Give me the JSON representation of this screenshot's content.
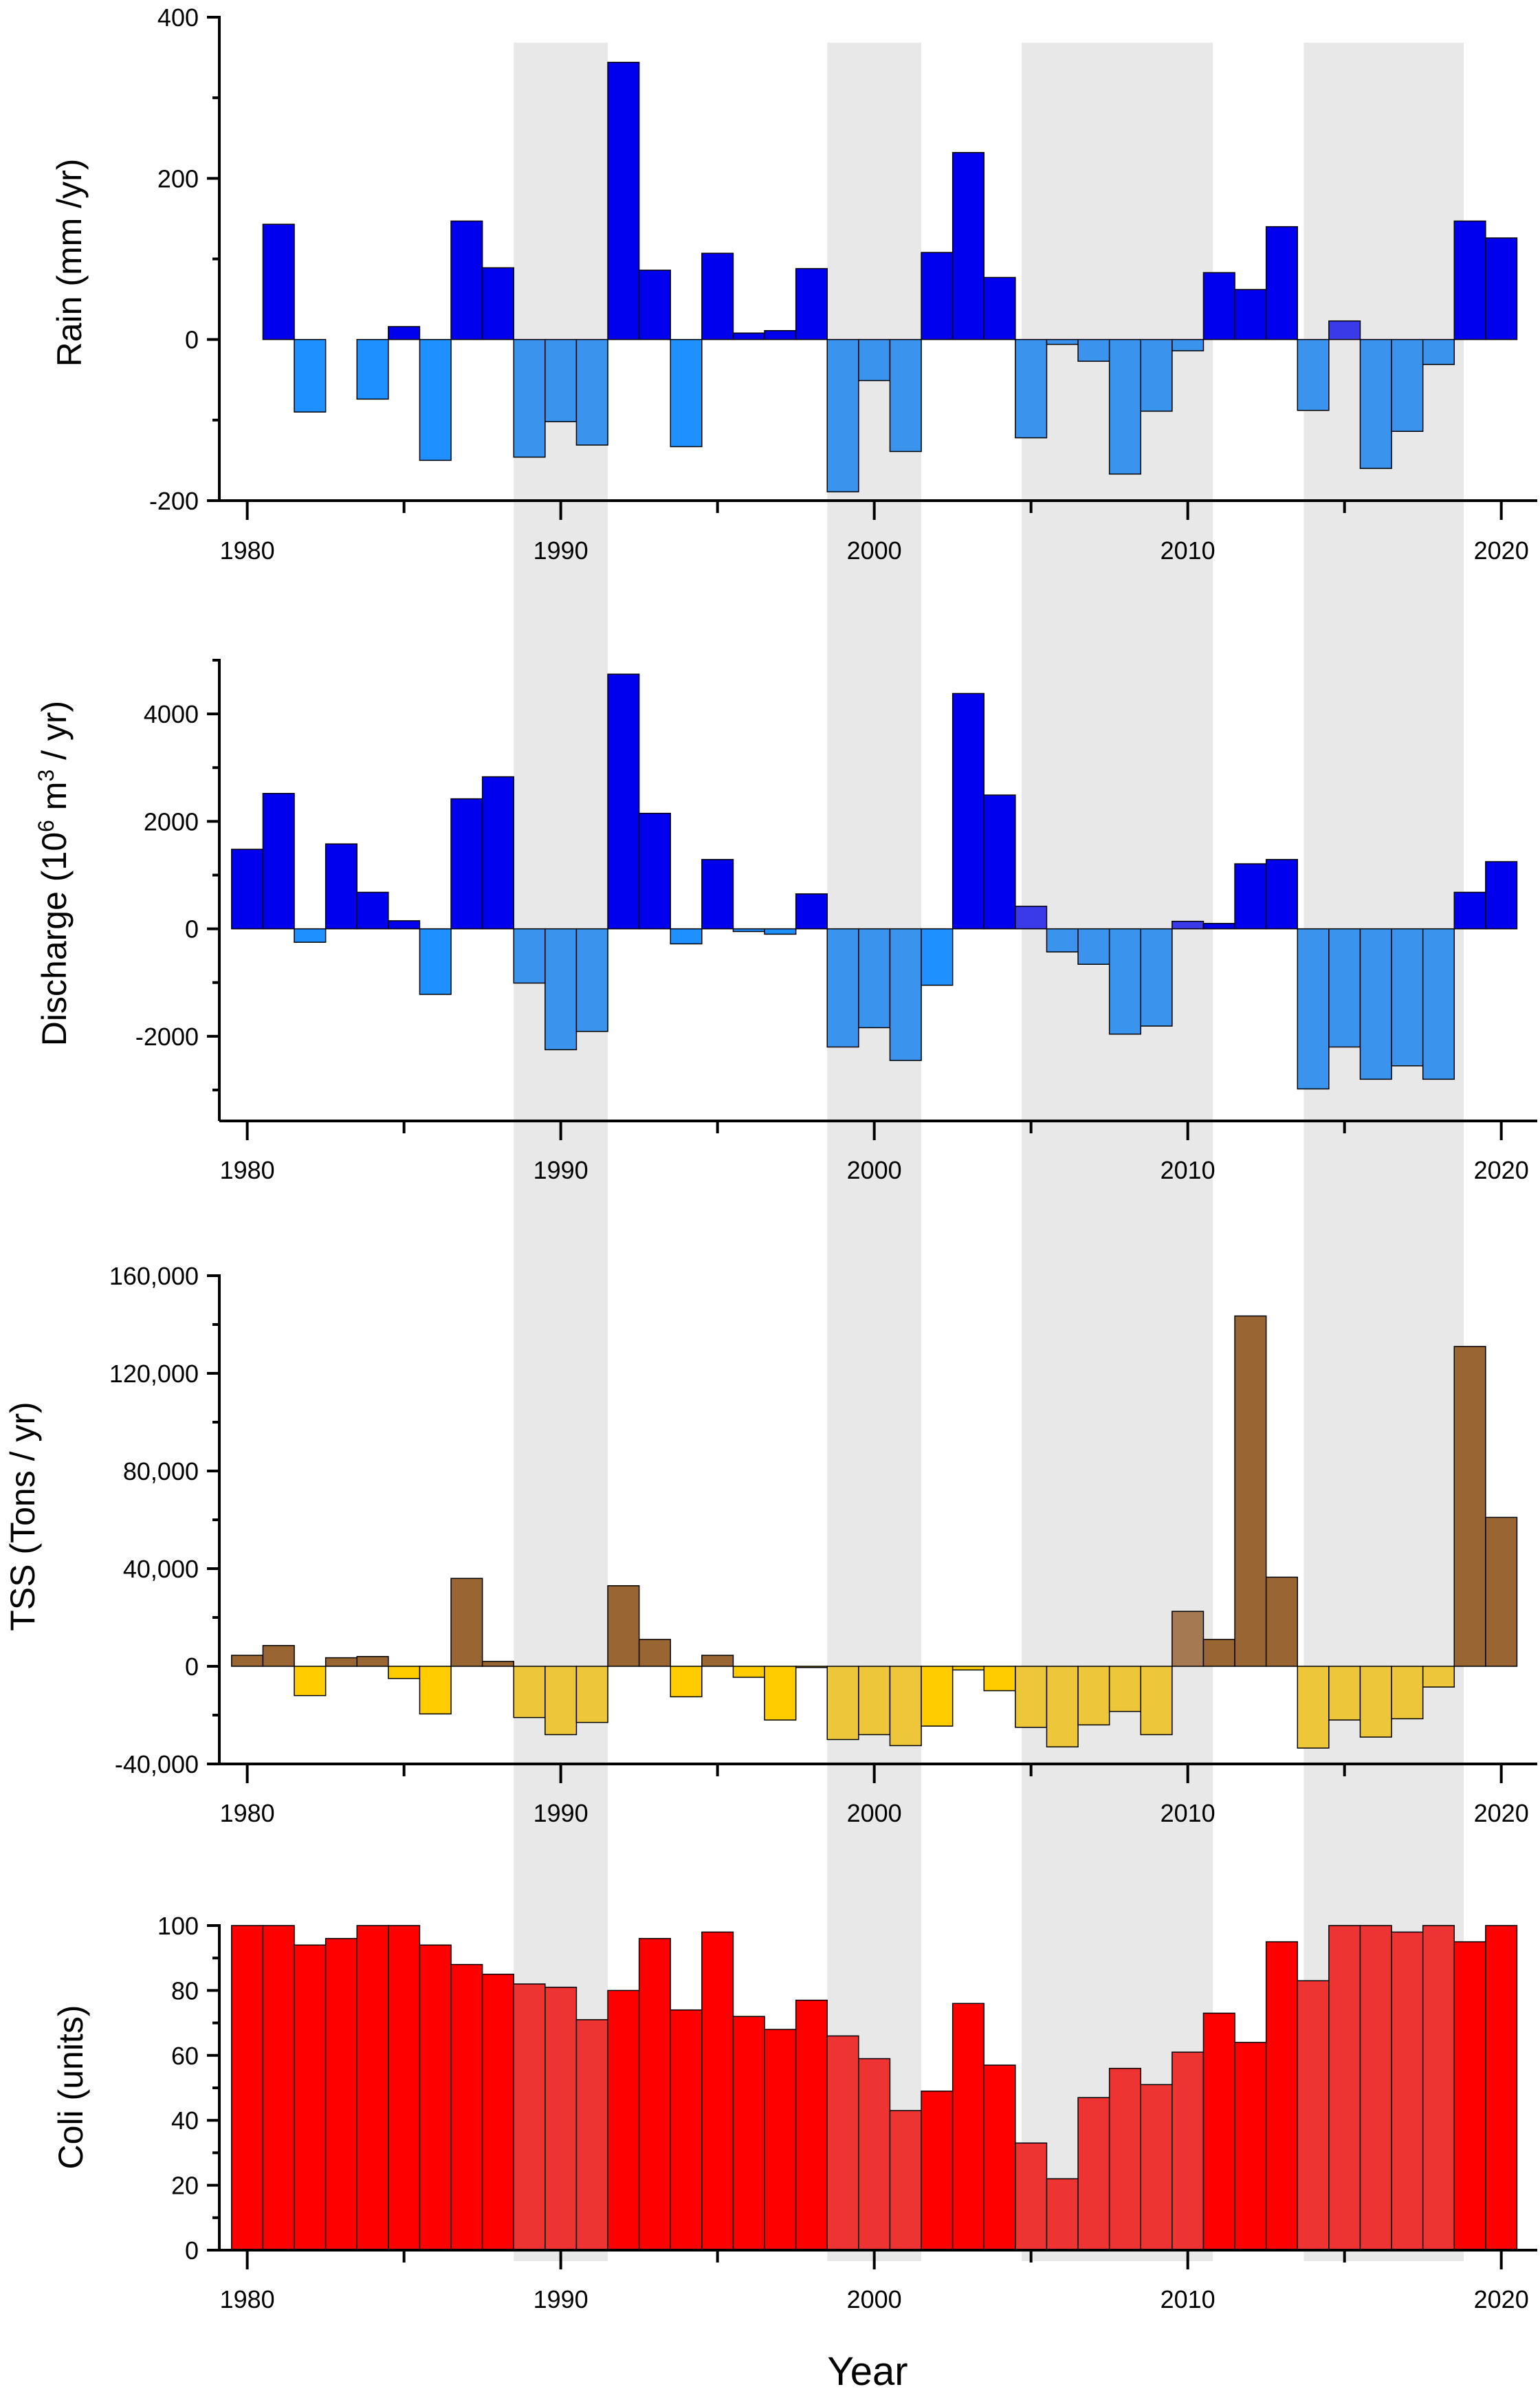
{
  "colors": {
    "shade": "#e8e8e8",
    "rain_pos": "#0000ee",
    "rain_neg": "#1e90ff",
    "rain_pos_shaded": "#3a3ae8",
    "rain_neg_shaded": "#3a94ee",
    "discharge_pos": "#0000ee",
    "discharge_neg": "#1e90ff",
    "discharge_pos_shaded": "#3a3ae8",
    "discharge_neg_shaded": "#3a94ee",
    "tss_pos": "#996633",
    "tss_neg": "#ffcc00",
    "tss_pos_shaded": "#a57a52",
    "tss_neg_shaded": "#eec63a",
    "coli": "#ff0000",
    "coli_shaded": "#ee3333"
  },
  "xlabel": "Year",
  "chart_data": [
    {
      "type": "bar",
      "ylabel": "Rain (mm /yr)",
      "ylim": [
        -200,
        400
      ],
      "yticks": [
        -200,
        0,
        200,
        400
      ],
      "yticklabels": [
        "-200",
        "0",
        "200",
        "400"
      ],
      "xticks": [
        1980,
        1990,
        2000,
        2010,
        2020
      ],
      "xticklabels": [
        "1980",
        "1990",
        "2000",
        "2010",
        "2020"
      ],
      "shaded_periods": [
        [
          1988.5,
          1991.5
        ],
        [
          1998.5,
          2001.5
        ],
        [
          2004.7,
          2010.8
        ],
        [
          2013.7,
          2018.8
        ]
      ],
      "x": [
        1980,
        1981,
        1982,
        1983,
        1984,
        1985,
        1986,
        1987,
        1988,
        1989,
        1990,
        1991,
        1992,
        1993,
        1994,
        1995,
        1996,
        1997,
        1998,
        1999,
        2000,
        2001,
        2002,
        2003,
        2004,
        2005,
        2006,
        2007,
        2008,
        2009,
        2010,
        2011,
        2012,
        2013,
        2014,
        2015,
        2016,
        2017,
        2018,
        2019,
        2020
      ],
      "values": [
        0,
        143,
        -90,
        0,
        -74,
        16,
        -150,
        147,
        89,
        -146,
        -102,
        -131,
        344,
        86,
        -133,
        107,
        8,
        11,
        88,
        -189,
        -51,
        -139,
        108,
        232,
        77,
        -122,
        -6,
        -27,
        -167,
        -89,
        -14,
        83,
        62,
        140,
        -88,
        23,
        -160,
        -114,
        -31,
        147,
        126
      ]
    },
    {
      "type": "bar",
      "ylabel": "Discharge (10",
      "ylabel_sup": "6",
      "ylabel_mid": " m",
      "ylabel_sup2": "3",
      "ylabel_end": " / yr)",
      "ylim": [
        -3000,
        5000
      ],
      "yticks": [
        -2000,
        0,
        2000,
        4000
      ],
      "yticklabels": [
        "-2000",
        "0",
        "2000",
        "4000"
      ],
      "xticks": [
        1980,
        1990,
        2000,
        2010,
        2020
      ],
      "xticklabels": [
        "1980",
        "1990",
        "2000",
        "2010",
        "2020"
      ],
      "shaded_periods": [
        [
          1988.5,
          1991.5
        ],
        [
          1998.5,
          2001.5
        ],
        [
          2004.7,
          2010.8
        ],
        [
          2013.7,
          2018.8
        ]
      ],
      "x": [
        1980,
        1981,
        1982,
        1983,
        1984,
        1985,
        1986,
        1987,
        1988,
        1989,
        1990,
        1991,
        1992,
        1993,
        1994,
        1995,
        1996,
        1997,
        1998,
        1999,
        2000,
        2001,
        2002,
        2003,
        2004,
        2005,
        2006,
        2007,
        2008,
        2009,
        2010,
        2011,
        2012,
        2013,
        2014,
        2015,
        2016,
        2017,
        2018,
        2019,
        2020
      ],
      "values": [
        1480,
        2520,
        -250,
        1580,
        680,
        150,
        -1220,
        2420,
        2830,
        -1010,
        -2250,
        -1910,
        4740,
        2150,
        -280,
        1290,
        -50,
        -100,
        650,
        -2200,
        -1840,
        -2450,
        -1050,
        4380,
        2490,
        420,
        -430,
        -660,
        -1960,
        -1810,
        140,
        100,
        1210,
        1290,
        -2980,
        -2200,
        -2800,
        -2550,
        -2800,
        680,
        1250
      ]
    },
    {
      "type": "bar",
      "ylabel": "TSS (Tons / yr)",
      "ylim": [
        -40000,
        160000
      ],
      "yticks": [
        -40000,
        0,
        40000,
        80000,
        120000,
        160000
      ],
      "yticklabels": [
        "-40,000",
        "0",
        "40,000",
        "80,000",
        "120,000",
        "160,000"
      ],
      "xticks": [
        1980,
        1990,
        2000,
        2010,
        2020
      ],
      "xticklabels": [
        "1980",
        "1990",
        "2000",
        "2010",
        "2020"
      ],
      "shaded_periods": [
        [
          1988.5,
          1991.5
        ],
        [
          1998.5,
          2001.5
        ],
        [
          2004.7,
          2010.8
        ],
        [
          2013.7,
          2018.8
        ]
      ],
      "x": [
        1980,
        1981,
        1982,
        1983,
        1984,
        1985,
        1986,
        1987,
        1988,
        1989,
        1990,
        1991,
        1992,
        1993,
        1994,
        1995,
        1996,
        1997,
        1998,
        1999,
        2000,
        2001,
        2002,
        2003,
        2004,
        2005,
        2006,
        2007,
        2008,
        2009,
        2010,
        2011,
        2012,
        2013,
        2014,
        2015,
        2016,
        2017,
        2018,
        2019,
        2020
      ],
      "values": [
        4500,
        8500,
        -12000,
        3500,
        4000,
        -5000,
        -19500,
        36000,
        2000,
        -21000,
        -28000,
        -23000,
        33000,
        11000,
        -12500,
        4500,
        -4500,
        -22000,
        -500,
        -30000,
        -28000,
        -32500,
        -24500,
        -1500,
        -10000,
        -25000,
        -33000,
        -24000,
        -18500,
        -28000,
        22500,
        11000,
        143500,
        36500,
        -33500,
        -22000,
        -29000,
        -21500,
        -8500,
        131000,
        61000
      ]
    },
    {
      "type": "bar",
      "ylabel": "Coli (units)",
      "ylim": [
        0,
        100
      ],
      "yticks": [
        0,
        20,
        40,
        60,
        80,
        100
      ],
      "yticklabels": [
        "0",
        "20",
        "40",
        "60",
        "80",
        "100"
      ],
      "xticks": [
        1980,
        1990,
        2000,
        2010,
        2020
      ],
      "xticklabels": [
        "1980",
        "1990",
        "2000",
        "2010",
        "2020"
      ],
      "shaded_periods": [
        [
          1988.5,
          1991.5
        ],
        [
          1998.5,
          2001.5
        ],
        [
          2004.7,
          2010.8
        ],
        [
          2013.7,
          2018.8
        ]
      ],
      "x": [
        1980,
        1981,
        1982,
        1983,
        1984,
        1985,
        1986,
        1987,
        1988,
        1989,
        1990,
        1991,
        1992,
        1993,
        1994,
        1995,
        1996,
        1997,
        1998,
        1999,
        2000,
        2001,
        2002,
        2003,
        2004,
        2005,
        2006,
        2007,
        2008,
        2009,
        2010,
        2011,
        2012,
        2013,
        2014,
        2015,
        2016,
        2017,
        2018,
        2019,
        2020
      ],
      "values": [
        100,
        100,
        94,
        96,
        100,
        100,
        94,
        88,
        85,
        82,
        81,
        71,
        80,
        96,
        74,
        98,
        72,
        68,
        77,
        66,
        59,
        43,
        49,
        76,
        57,
        33,
        22,
        47,
        56,
        51,
        61,
        73,
        64,
        95,
        83,
        100,
        100,
        98,
        100,
        95,
        100
      ]
    }
  ]
}
